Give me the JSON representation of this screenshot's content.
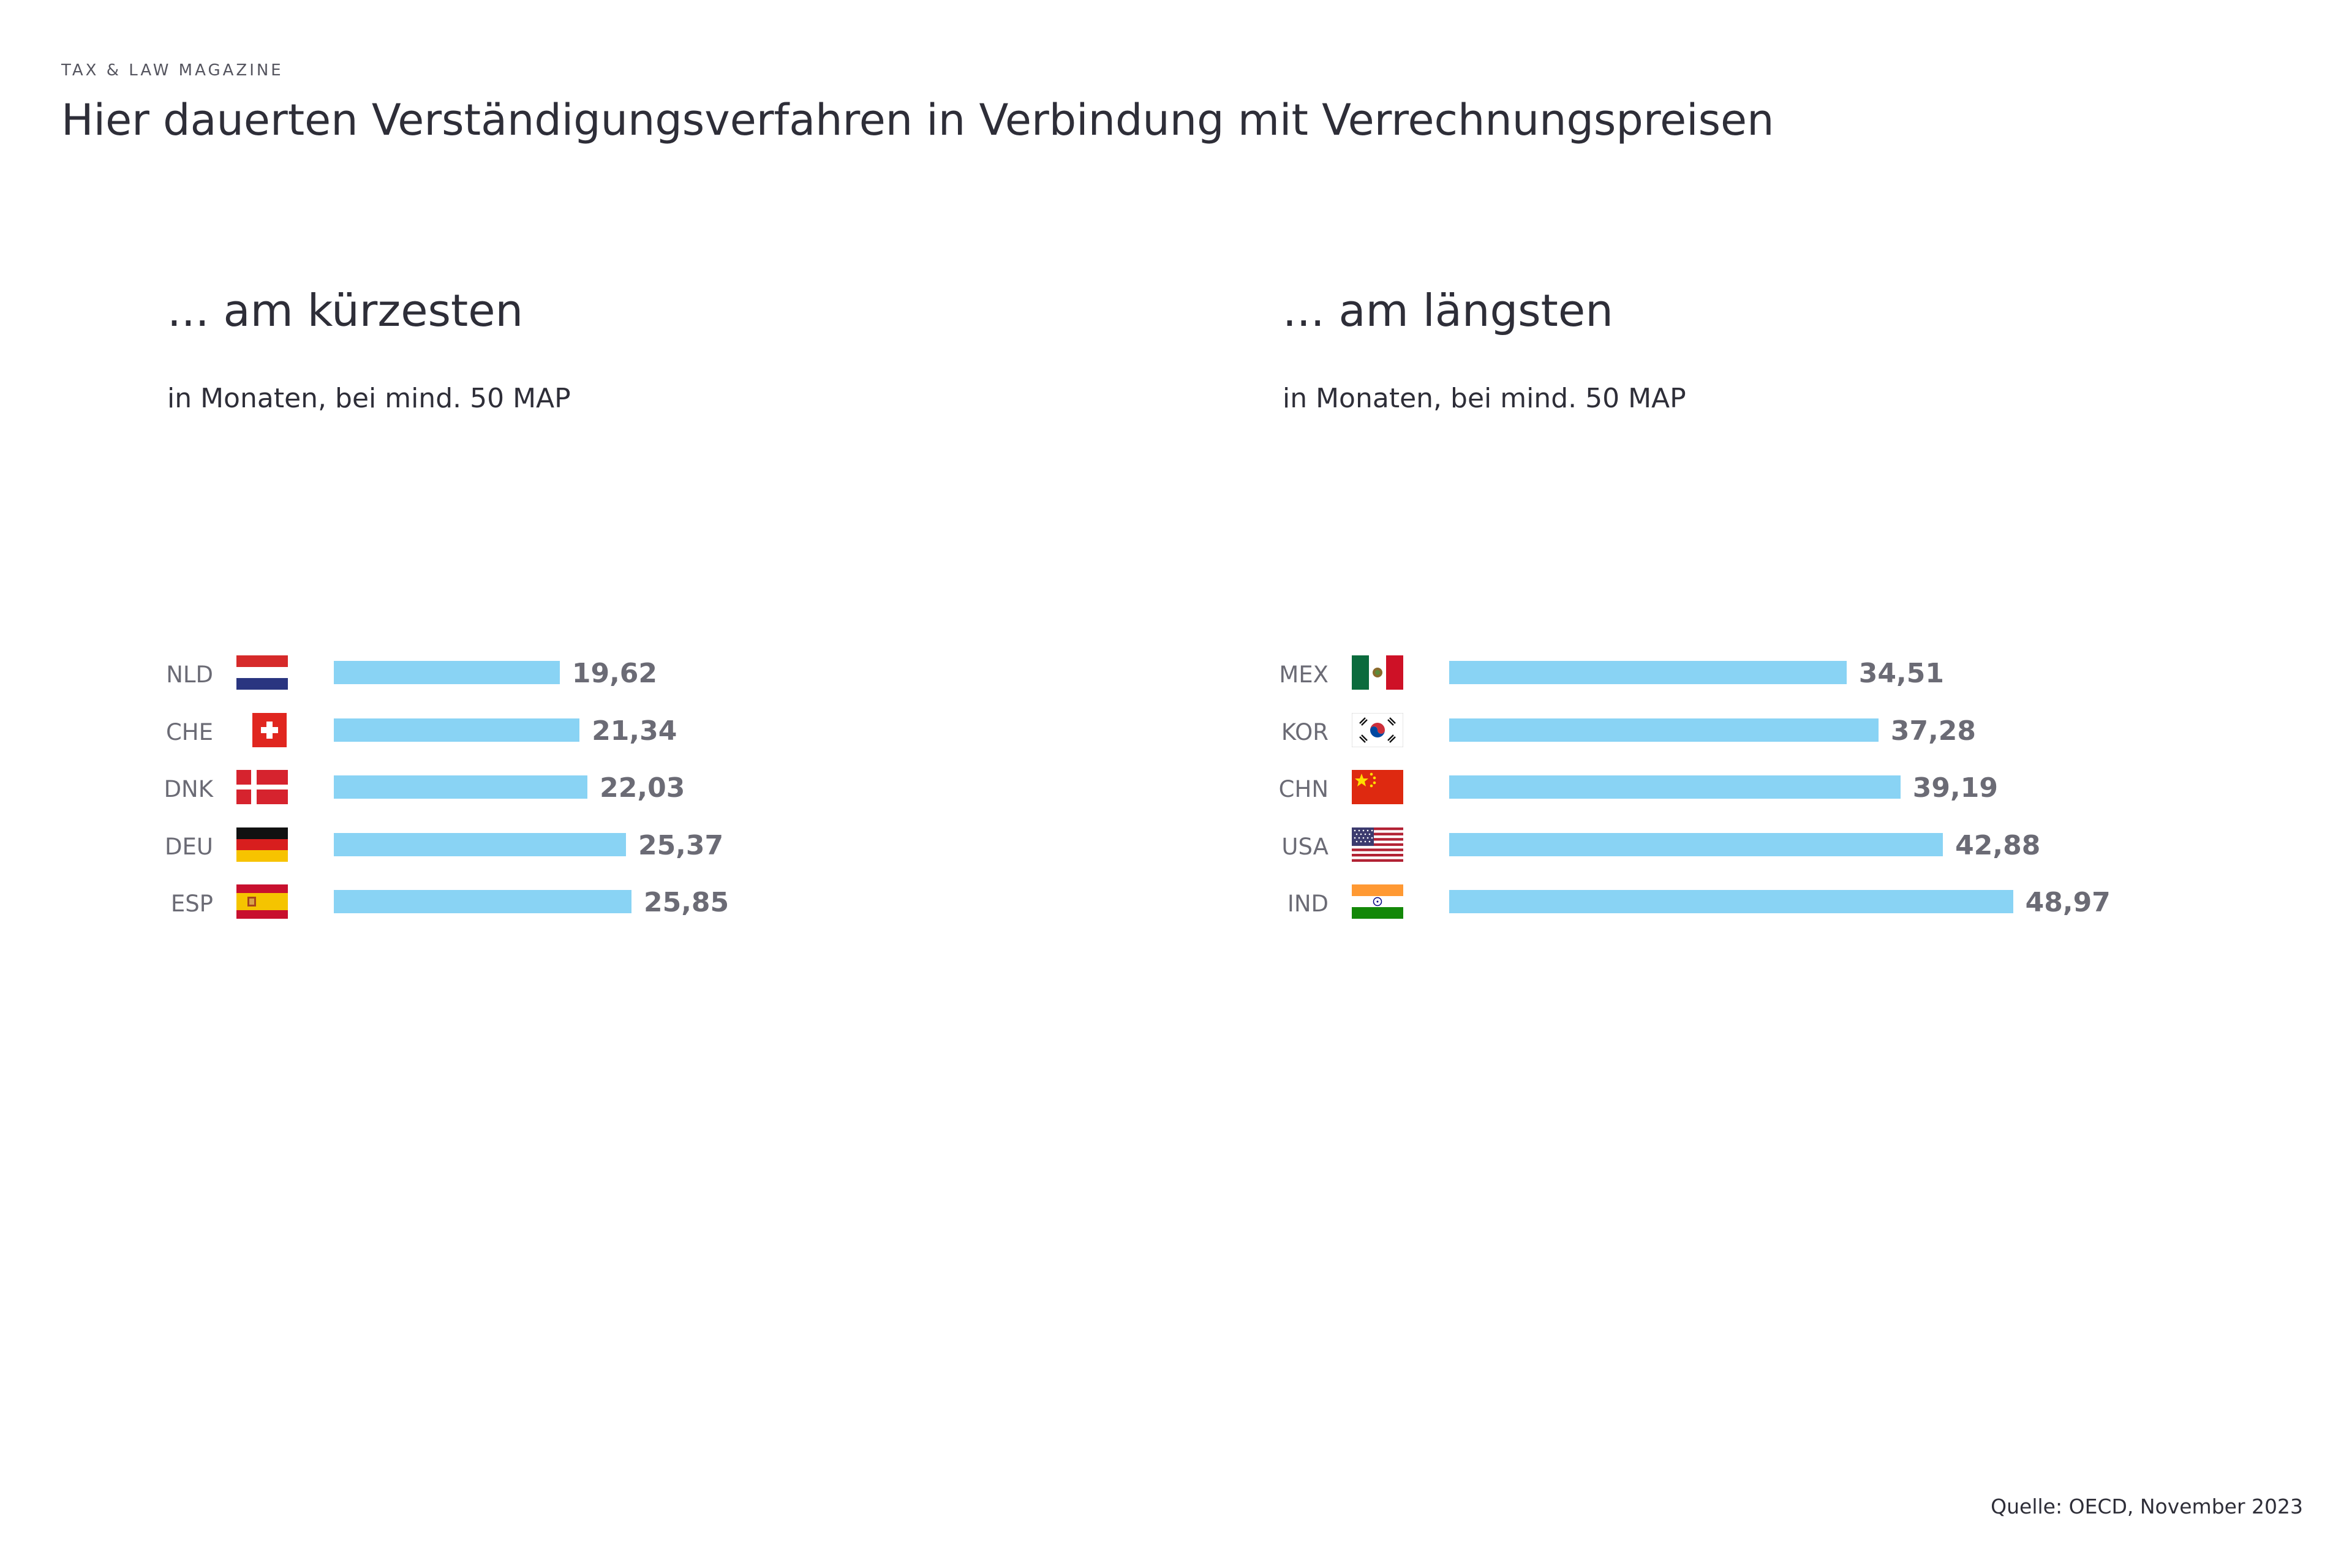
{
  "header": {
    "kicker": "TAX & LAW MAGAZINE",
    "title": "Hier dauerten Verständigungsverfahren in Verbindung mit Verrechnungspreisen"
  },
  "source": "Quelle: OECD, November 2023",
  "chart_data": [
    {
      "type": "bar",
      "orientation": "horizontal",
      "title": "... am kürzesten",
      "subtitle": "in Monaten, bei mind. 50 MAP",
      "xlim": [
        0,
        60
      ],
      "color": "#89d3f4",
      "categories": [
        "NLD",
        "CHE",
        "DNK",
        "DEU",
        "ESP"
      ],
      "values": [
        19.62,
        21.34,
        22.03,
        25.37,
        25.85
      ],
      "value_labels": [
        "19,62",
        "21,34",
        "22,03",
        "25,37",
        "25,85"
      ],
      "flag_icons": [
        "netherlands-flag-icon",
        "switzerland-flag-icon",
        "denmark-flag-icon",
        "germany-flag-icon",
        "spain-flag-icon"
      ]
    },
    {
      "type": "bar",
      "orientation": "horizontal",
      "title": "... am längsten",
      "subtitle": "in Monaten, bei mind. 50 MAP",
      "xlim": [
        0,
        60
      ],
      "color": "#89d3f4",
      "categories": [
        "MEX",
        "KOR",
        "CHN",
        "USA",
        "IND"
      ],
      "values": [
        34.51,
        37.28,
        39.19,
        42.88,
        48.97
      ],
      "value_labels": [
        "34,51",
        "37,28",
        "39,19",
        "42,88",
        "48,97"
      ],
      "flag_icons": [
        "mexico-flag-icon",
        "south-korea-flag-icon",
        "china-flag-icon",
        "usa-flag-icon",
        "india-flag-icon"
      ]
    }
  ]
}
